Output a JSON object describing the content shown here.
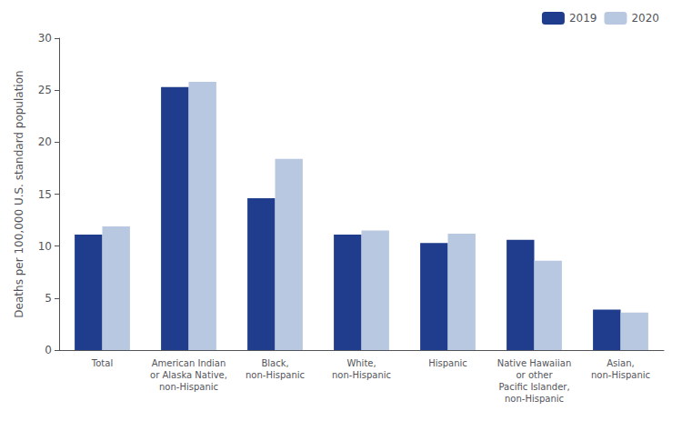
{
  "chart_data": {
    "type": "bar",
    "categories": [
      "Total",
      "American Indian\nor Alaska Native,\nnon-Hispanic",
      "Black,\nnon-Hispanic",
      "White,\nnon-Hispanic",
      "Hispanic",
      "Native Hawaiian\nor other\nPacific Islander,\nnon-Hispanic",
      "Asian,\nnon-Hispanic"
    ],
    "series": [
      {
        "name": "2019",
        "color": "#1f3d8c",
        "values": [
          11.1,
          25.3,
          14.6,
          11.1,
          10.3,
          10.6,
          3.9
        ]
      },
      {
        "name": "2020",
        "color": "#b8c8e0",
        "values": [
          11.9,
          25.8,
          18.4,
          11.5,
          11.2,
          8.6,
          3.6
        ]
      }
    ],
    "ylabel": "Deaths per 100,000 U.S. standard population",
    "ylim": [
      0,
      30
    ],
    "yticks": [
      0,
      5,
      10,
      15,
      20,
      25,
      30
    ],
    "grid": false,
    "legend": "upper right"
  }
}
